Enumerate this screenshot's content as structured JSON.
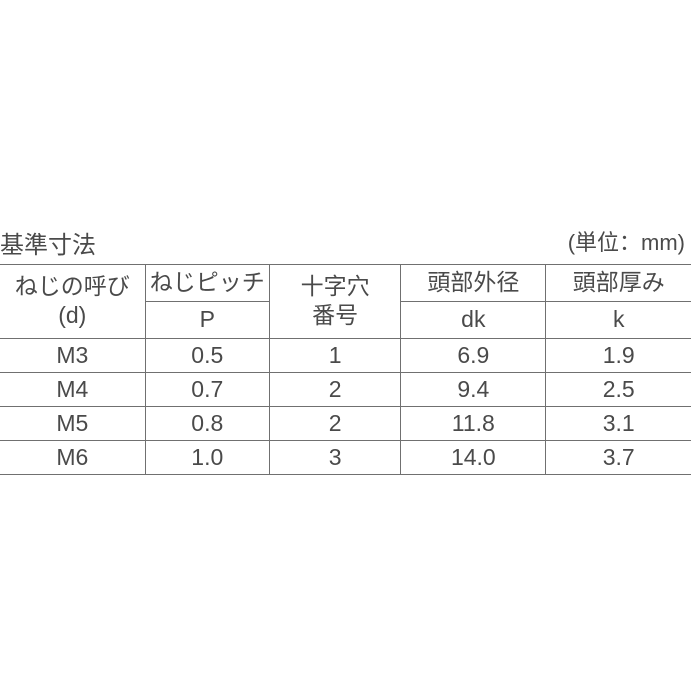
{
  "title": "基準寸法",
  "unit": "(単位：mm)",
  "columns": {
    "col1": {
      "header_line1": "ねじの呼び",
      "header_line2": "(d)"
    },
    "col2": {
      "header_top": "ねじピッチ",
      "header_bottom": "P"
    },
    "col3": {
      "header_line1": "十字穴",
      "header_line2": "番号"
    },
    "col4": {
      "header_top": "頭部外径",
      "header_bottom": "dk"
    },
    "col5": {
      "header_top": "頭部厚み",
      "header_bottom": "k"
    }
  },
  "rows": [
    {
      "c1": "M3",
      "c2": "0.5",
      "c3": "1",
      "c4": "6.9",
      "c5": "1.9"
    },
    {
      "c1": "M4",
      "c2": "0.7",
      "c3": "2",
      "c4": "9.4",
      "c5": "2.5"
    },
    {
      "c1": "M5",
      "c2": "0.8",
      "c3": "2",
      "c4": "11.8",
      "c5": "3.1"
    },
    {
      "c1": "M6",
      "c2": "1.0",
      "c3": "3",
      "c4": "14.0",
      "c5": "3.7"
    }
  ],
  "styling": {
    "background_color": "#ffffff",
    "text_color": "#4a4a4a",
    "border_color": "#707070",
    "font_size_title": 24,
    "font_size_unit": 22,
    "font_size_cell": 23,
    "col_widths_pct": [
      21,
      18,
      19,
      21,
      21
    ]
  }
}
